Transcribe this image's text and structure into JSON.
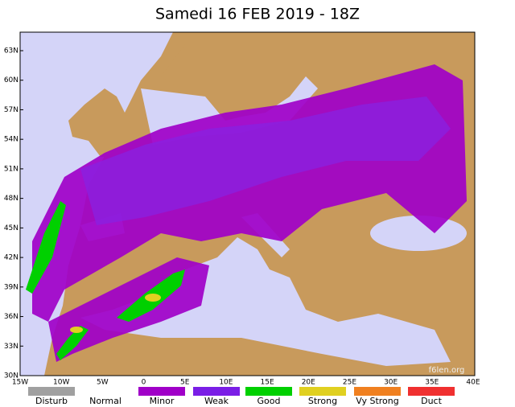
{
  "title": "Samedi 16 FEB 2019 - 18Z",
  "latitude_labels": [
    "63N",
    "60N",
    "57N",
    "54N",
    "51N",
    "48N",
    "45N",
    "42N",
    "39N",
    "36N",
    "33N",
    "30N"
  ],
  "longitude_labels": [
    "15W",
    "10W",
    "5W",
    "0",
    "5E",
    "10E",
    "15E",
    "20E",
    "25E",
    "30E",
    "35E",
    "40E"
  ],
  "legend": [
    {
      "label": "Disturb",
      "color": "#a0a0a0"
    },
    {
      "label": "Normal",
      "color": "#ffffff"
    },
    {
      "label": "Minor",
      "color": "#a000c8"
    },
    {
      "label": "Weak",
      "color": "#7a1ee6"
    },
    {
      "label": "Good",
      "color": "#00d000"
    },
    {
      "label": "Strong",
      "color": "#e0d020"
    },
    {
      "label": "Vy Strong",
      "color": "#f08020"
    },
    {
      "label": "Duct",
      "color": "#f03030"
    }
  ],
  "watermark": "f6len.org"
}
